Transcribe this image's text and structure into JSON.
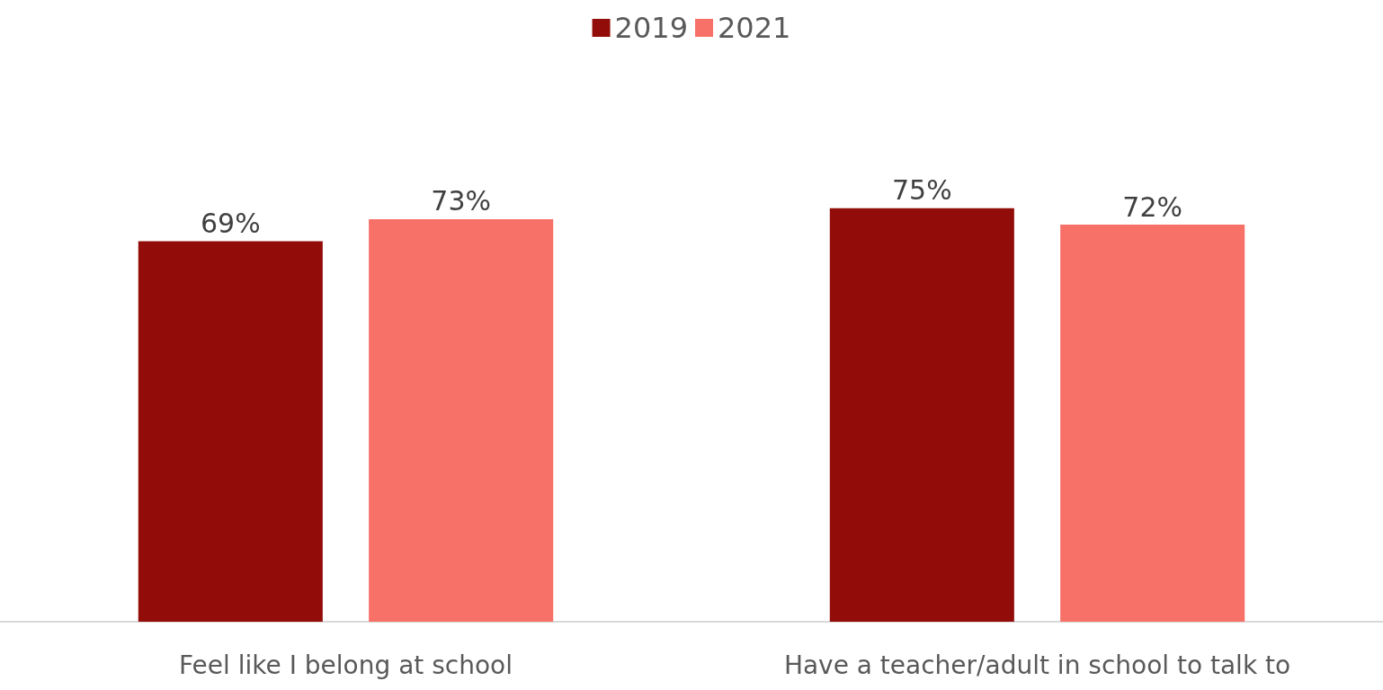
{
  "chart_data": {
    "type": "bar",
    "categories": [
      "Feel like I belong at school",
      "Have a teacher/adult in school to talk to"
    ],
    "series": [
      {
        "name": "2019",
        "color": "#920d09",
        "values": [
          69,
          75
        ],
        "value_labels": [
          "69%",
          "75%"
        ]
      },
      {
        "name": "2021",
        "color": "#f77168",
        "values": [
          73,
          72
        ],
        "value_labels": [
          "73%",
          "72%"
        ]
      }
    ],
    "legend": "top"
  }
}
